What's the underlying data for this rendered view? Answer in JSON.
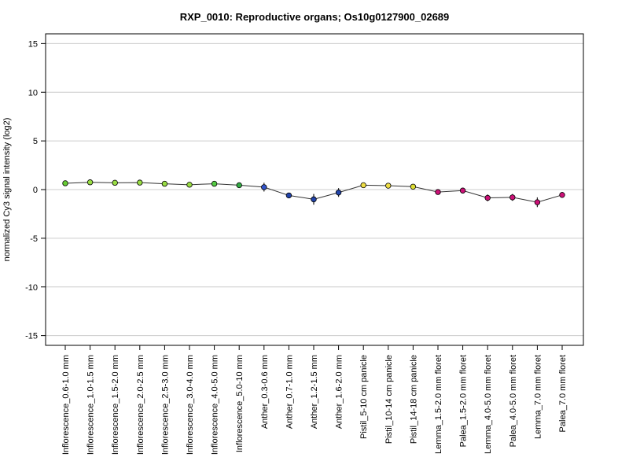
{
  "chart_data": {
    "type": "line",
    "title": "RXP_0010: Reproductive organs; Os10g0127900_02689",
    "xlabel": "",
    "ylabel": "normalized Cy3 signal intensity (log2)",
    "ylim": [
      -16,
      16
    ],
    "yticks": [
      -15,
      -10,
      -5,
      0,
      5,
      10,
      15
    ],
    "grid": "horizontal",
    "categories": [
      "Inflorescence_0.6-1.0 mm",
      "Inflorescence_1.0-1.5 mm",
      "Inflorescence_1.5-2.0 mm",
      "Inflorescence_2.0-2.5 mm",
      "Inflorescence_2.5-3.0 mm",
      "Inflorescence_3.0-4.0 mm",
      "Inflorescence_4.0-5.0 mm",
      "Inflorescence_5.0-10 mm",
      "Anther_0.3-0.6 mm",
      "Anther_0.7-1.0 mm",
      "Anther_1.2-1.5 mm",
      "Anther_1.6-2.0 mm",
      "Pistil_5-10 cm panicle",
      "Pistil_10-14 cm panicle",
      "Pistil_14-18 cm panicle",
      "Lemma_1.5-2.0 mm floret",
      "Palea_1.5-2.0 mm floret",
      "Lemma_4.0-5.0 mm floret",
      "Palea_4.0-5.0 mm floret",
      "Lemma_7.0 mm floret",
      "Palea_7.0 mm floret"
    ],
    "values": [
      0.65,
      0.75,
      0.7,
      0.72,
      0.6,
      0.5,
      0.6,
      0.45,
      0.25,
      -0.6,
      -1.0,
      -0.3,
      0.45,
      0.4,
      0.3,
      -0.25,
      -0.1,
      -0.85,
      -0.8,
      -1.3,
      -0.55
    ],
    "errors": [
      0.1,
      0.1,
      0.1,
      0.1,
      0.1,
      0.1,
      0.1,
      0.1,
      0.45,
      0.2,
      0.55,
      0.45,
      0.15,
      0.15,
      0.1,
      0.1,
      0.1,
      0.35,
      0.35,
      0.5,
      0.3
    ],
    "point_colors": [
      "#66cc33",
      "#99dd44",
      "#99dd44",
      "#99dd44",
      "#99dd44",
      "#99dd44",
      "#55cc44",
      "#33aa44",
      "#3355cc",
      "#2244aa",
      "#2244aa",
      "#2244aa",
      "#eedd44",
      "#eedd44",
      "#dddd33",
      "#cc1177",
      "#cc1177",
      "#cc1177",
      "#cc1177",
      "#cc1177",
      "#cc1177"
    ],
    "line_color": "#333333",
    "gridline_color": "#cccccc"
  }
}
